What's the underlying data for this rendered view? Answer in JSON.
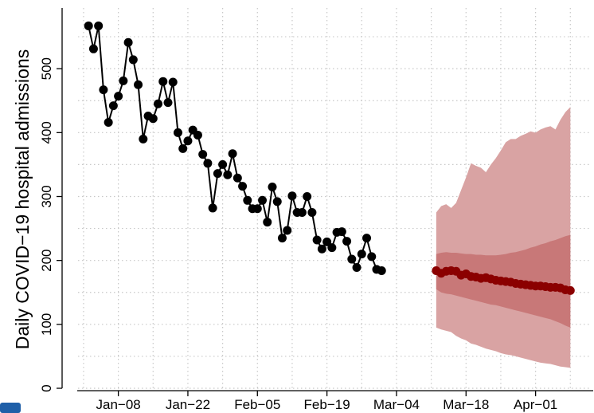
{
  "chart_data": {
    "type": "line",
    "ylabel": "Daily COVID−19 hospital admissions",
    "ylim": [
      0,
      595
    ],
    "yticks": [
      0,
      100,
      200,
      300,
      400,
      500
    ],
    "xlim": [
      "Dec−28",
      "Apr−11"
    ],
    "xticks": [
      "Jan−08",
      "Jan−22",
      "Feb−05",
      "Feb−19",
      "Mar−04",
      "Mar−18",
      "Apr−01"
    ],
    "grid": true,
    "series": [
      {
        "color": "#000000",
        "line": true,
        "x": [
          "Jan−02",
          "Jan−03",
          "Jan−04",
          "Jan−05",
          "Jan−06",
          "Jan−07",
          "Jan−08",
          "Jan−09",
          "Jan−10",
          "Jan−11",
          "Jan−12",
          "Jan−13",
          "Jan−14",
          "Jan−15",
          "Jan−16",
          "Jan−17",
          "Jan−18",
          "Jan−19",
          "Jan−20",
          "Jan−21",
          "Jan−22",
          "Jan−23",
          "Jan−24",
          "Jan−25",
          "Jan−26",
          "Jan−27",
          "Jan−28",
          "Jan−29",
          "Jan−30",
          "Jan−31",
          "Feb−01",
          "Feb−02",
          "Feb−03",
          "Feb−04",
          "Feb−05",
          "Feb−06",
          "Feb−07",
          "Feb−08",
          "Feb−09",
          "Feb−10",
          "Feb−11",
          "Feb−12",
          "Feb−13",
          "Feb−14",
          "Feb−15",
          "Feb−16",
          "Feb−17",
          "Feb−18",
          "Feb−19",
          "Feb−20",
          "Feb−21",
          "Feb−22",
          "Feb−23",
          "Feb−24",
          "Feb−25",
          "Feb−26",
          "Feb−27",
          "Feb−28",
          "Feb−29",
          "Mar−01"
        ],
        "values": [
          567,
          531,
          567,
          467,
          416,
          442,
          457,
          481,
          541,
          514,
          475,
          390,
          426,
          422,
          445,
          480,
          447,
          479,
          400,
          375,
          387,
          404,
          396,
          366,
          352,
          282,
          336,
          350,
          334,
          367,
          329,
          316,
          294,
          281,
          281,
          294,
          260,
          315,
          292,
          235,
          247,
          301,
          275,
          275,
          300,
          275,
          232,
          218,
          229,
          220,
          244,
          245,
          230,
          202,
          189,
          210,
          235,
          206,
          186,
          184
        ]
      },
      {
        "color": "#8b0000",
        "line": false,
        "x": [
          "Mar−12",
          "Mar−13",
          "Mar−14",
          "Mar−15",
          "Mar−16",
          "Mar−17",
          "Mar−18",
          "Mar−19",
          "Mar−20",
          "Mar−21",
          "Mar−22",
          "Mar−23",
          "Mar−24",
          "Mar−25",
          "Mar−26",
          "Mar−27",
          "Mar−28",
          "Mar−29",
          "Mar−30",
          "Mar−31",
          "Apr−01",
          "Apr−02",
          "Apr−03",
          "Apr−04",
          "Apr−05",
          "Apr−06",
          "Apr−07",
          "Apr−08"
        ],
        "values": [
          184,
          180,
          183,
          184,
          183,
          177,
          179,
          175,
          174,
          172,
          173,
          171,
          169,
          168,
          167,
          166,
          164,
          163,
          162,
          161,
          160,
          160,
          159,
          158,
          158,
          157,
          154,
          153
        ]
      }
    ],
    "bands": [
      {
        "color": "#d9a3a3",
        "lower": [
          95,
          92,
          90,
          88,
          82,
          78,
          75,
          70,
          68,
          65,
          62,
          60,
          58,
          55,
          53,
          52,
          50,
          48,
          46,
          44,
          42,
          40,
          39,
          38,
          36,
          34,
          33,
          32
        ],
        "upper": [
          275,
          285,
          288,
          282,
          290,
          310,
          330,
          352,
          348,
          345,
          338,
          350,
          360,
          372,
          385,
          390,
          390,
          395,
          398,
          402,
          400,
          405,
          408,
          410,
          405,
          420,
          432,
          440
        ]
      },
      {
        "color": "#c87878",
        "lower": [
          155,
          150,
          148,
          147,
          145,
          143,
          141,
          139,
          137,
          135,
          133,
          131,
          130,
          128,
          126,
          124,
          122,
          120,
          118,
          116,
          114,
          112,
          110,
          108,
          105,
          102,
          98,
          95
        ],
        "upper": [
          210,
          212,
          213,
          212,
          212,
          211,
          210,
          210,
          209,
          209,
          208,
          208,
          208,
          209,
          210,
          212,
          213,
          215,
          217,
          220,
          222,
          225,
          227,
          230,
          232,
          235,
          238,
          240
        ]
      }
    ]
  }
}
